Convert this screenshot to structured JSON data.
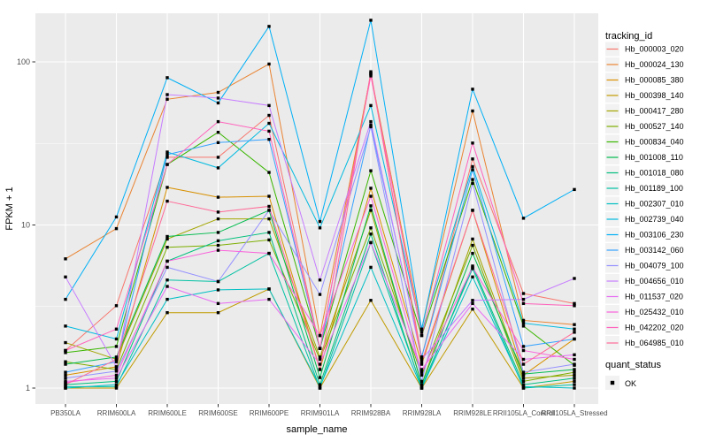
{
  "chart_data": {
    "type": "line",
    "title": "",
    "xlabel": "sample_name",
    "ylabel": "FPKM + 1",
    "y_scale": "log10",
    "y_ticks": [
      "1",
      "10",
      "100"
    ],
    "y_tick_values": [
      1,
      10,
      100
    ],
    "ylim": [
      0.9,
      230
    ],
    "grid": "on",
    "panel_bg": "#EBEBEB",
    "grid_color": "#FFFFFF",
    "tick_label_color": "#4D4D4D",
    "tick_mark_color": "#333333",
    "marker": "black-square",
    "marker_color": "#000000",
    "x_categories": [
      "PB350LA",
      "RRIM600LA",
      "RRIM600LE",
      "RRIM600SE",
      "RRIM600PE",
      "RRIM901LA",
      "RRIM928BA",
      "RRIM928LA",
      "RRIM928LE",
      "RRII105LA_Control",
      "RRII105LA_Stressed"
    ],
    "legend": {
      "position": "right",
      "color_title": "tracking_id",
      "shape_title": "quant_status",
      "shape_items": [
        {
          "label": "OK",
          "marker": "black-square"
        }
      ]
    },
    "series": [
      {
        "name": "Hb_000003_020",
        "color": "#F8766D",
        "values": [
          1.7,
          3.2,
          26,
          26,
          47,
          1.75,
          85,
          1.55,
          25.4,
          3.8,
          3.3
        ]
      },
      {
        "name": "Hb_000024_130",
        "color": "#EA8331",
        "values": [
          6.2,
          9.5,
          59,
          65,
          97,
          2.1,
          84,
          2.3,
          50,
          2.6,
          2.45
        ]
      },
      {
        "name": "Hb_000085_380",
        "color": "#D89000",
        "values": [
          1.2,
          1.35,
          17,
          14.8,
          15,
          1.3,
          16.8,
          1.4,
          12.3,
          1.2,
          2.0
        ]
      },
      {
        "name": "Hb_000398_140",
        "color": "#C09B00",
        "values": [
          1.0,
          1.0,
          2.9,
          2.9,
          4.05,
          1.0,
          3.45,
          1.0,
          3.05,
          1.0,
          1.1
        ]
      },
      {
        "name": "Hb_000417_280",
        "color": "#A3A500",
        "values": [
          1.9,
          1.5,
          8.2,
          10.9,
          10.9,
          1.55,
          12.3,
          1.05,
          8.2,
          1.15,
          1.2
        ]
      },
      {
        "name": "Hb_000527_140",
        "color": "#7CAE00",
        "values": [
          1.45,
          1.3,
          7.3,
          7.5,
          8.1,
          1.5,
          9.6,
          1.2,
          7.5,
          1.1,
          1.25
        ]
      },
      {
        "name": "Hb_000834_040",
        "color": "#39B600",
        "values": [
          1.65,
          1.8,
          23.5,
          37,
          21,
          1.75,
          21.5,
          2.1,
          19,
          2.4,
          1.38
        ]
      },
      {
        "name": "Hb_001008_110",
        "color": "#00BB4E",
        "values": [
          1.4,
          1.55,
          8.5,
          9.0,
          12.3,
          1.16,
          13.1,
          1.05,
          6.7,
          1.22,
          1.3
        ]
      },
      {
        "name": "Hb_001018_080",
        "color": "#00BF7D",
        "values": [
          1.05,
          1.1,
          6.0,
          8.0,
          9.0,
          1.05,
          8.8,
          1.0,
          5.6,
          1.05,
          1.15
        ]
      },
      {
        "name": "Hb_001189_100",
        "color": "#00C1A3",
        "values": [
          1.02,
          1.02,
          4.6,
          4.5,
          6.7,
          1.0,
          7.8,
          1.02,
          5.4,
          1.0,
          1.05
        ]
      },
      {
        "name": "Hb_002307_010",
        "color": "#00BFC4",
        "values": [
          1.0,
          1.05,
          3.5,
          4.0,
          4.05,
          1.02,
          5.5,
          1.0,
          4.8,
          1.02,
          1.0
        ]
      },
      {
        "name": "Hb_002739_040",
        "color": "#00BAE0",
        "values": [
          2.4,
          2.0,
          28,
          22.4,
          42,
          9.6,
          54,
          2.2,
          22.8,
          2.5,
          2.3
        ]
      },
      {
        "name": "Hb_003106_230",
        "color": "#00B0F6",
        "values": [
          3.5,
          11.2,
          80,
          56,
          165,
          10.5,
          180,
          2.3,
          68,
          11,
          16.5
        ]
      },
      {
        "name": "Hb_003142_060",
        "color": "#35A2FF",
        "values": [
          1.25,
          1.45,
          27,
          32,
          33.5,
          1.75,
          41,
          1.55,
          21.8,
          1.8,
          2.0
        ]
      },
      {
        "name": "Hb_004079_100",
        "color": "#9590FF",
        "values": [
          1.15,
          1.27,
          5.5,
          4.5,
          12.3,
          3.75,
          40,
          1.1,
          18,
          1.25,
          1.4
        ]
      },
      {
        "name": "Hb_004656_010",
        "color": "#C77CFF",
        "values": [
          4.8,
          1.35,
          63,
          60,
          54,
          4.6,
          43,
          1.5,
          3.45,
          3.5,
          4.7
        ]
      },
      {
        "name": "Hb_011537_020",
        "color": "#E76BF3",
        "values": [
          1.1,
          1.15,
          4.2,
          3.3,
          3.5,
          1.4,
          7.8,
          1.3,
          3.3,
          1.5,
          1.6
        ]
      },
      {
        "name": "Hb_025432_010",
        "color": "#FA62DB",
        "values": [
          1.08,
          1.2,
          6.0,
          7.0,
          6.7,
          2.1,
          15,
          1.25,
          5.5,
          1.7,
          1.5
        ]
      },
      {
        "name": "Hb_042202_020",
        "color": "#FF62BC",
        "values": [
          1.7,
          2.3,
          23.5,
          43,
          37.6,
          1.75,
          82,
          2.1,
          31.8,
          3.3,
          3.2
        ]
      },
      {
        "name": "Hb_064985_010",
        "color": "#FF6A98",
        "values": [
          1.05,
          1.5,
          14,
          12.0,
          13,
          1.3,
          87,
          1.45,
          12.3,
          1.4,
          2.2
        ]
      }
    ]
  }
}
